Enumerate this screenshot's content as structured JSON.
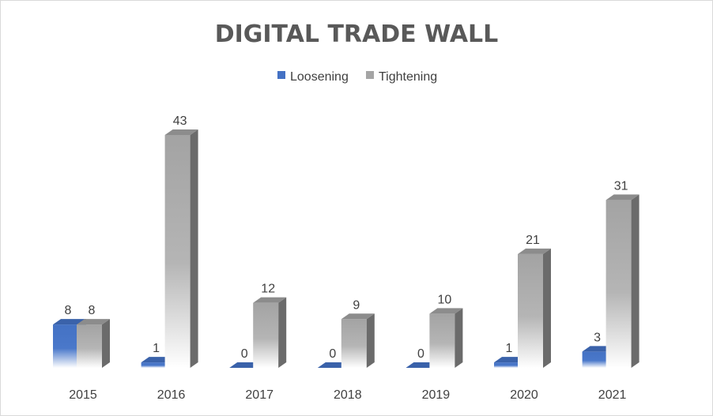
{
  "chart_data": {
    "type": "bar",
    "title": "DIGITAL TRADE WALL",
    "categories": [
      "2015",
      "2016",
      "2017",
      "2018",
      "2019",
      "2020",
      "2021"
    ],
    "series": [
      {
        "name": "Loosening",
        "values": [
          8,
          1,
          0,
          0,
          0,
          1,
          3
        ],
        "color": "#4472C4"
      },
      {
        "name": "Tightening",
        "values": [
          8,
          43,
          12,
          9,
          10,
          21,
          31
        ],
        "color": "#A5A5A5"
      }
    ],
    "legend_position": "top",
    "grid": false,
    "data_labels": true,
    "three_d": true,
    "xlabel": "",
    "ylabel": "",
    "ylim": [
      0,
      43
    ]
  }
}
